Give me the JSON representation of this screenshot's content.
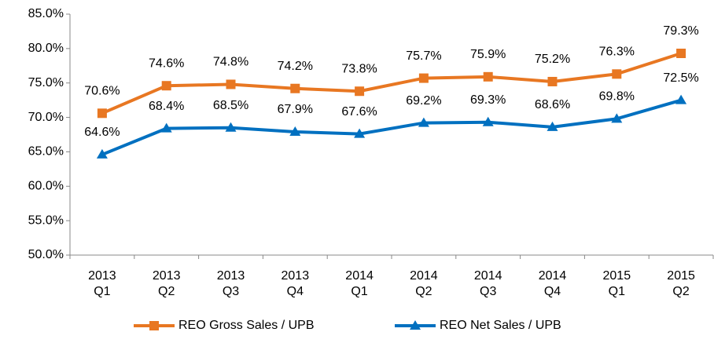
{
  "chart_data": {
    "type": "line",
    "categories": [
      "2013 Q1",
      "2013 Q2",
      "2013 Q3",
      "2013 Q4",
      "2014 Q1",
      "2014 Q2",
      "2014 Q3",
      "2014 Q4",
      "2015 Q1",
      "2015 Q2"
    ],
    "series": [
      {
        "name": "REO Gross Sales / UPB",
        "color": "#E87722",
        "marker": "square",
        "values": [
          70.6,
          74.6,
          74.8,
          74.2,
          73.8,
          75.7,
          75.9,
          75.2,
          76.3,
          79.3
        ],
        "value_labels": [
          "70.6%",
          "74.6%",
          "74.8%",
          "74.2%",
          "73.8%",
          "75.7%",
          "75.9%",
          "75.2%",
          "76.3%",
          "79.3%"
        ]
      },
      {
        "name": "REO Net Sales / UPB",
        "color": "#0070C0",
        "marker": "triangle",
        "values": [
          64.6,
          68.4,
          68.5,
          67.9,
          67.6,
          69.2,
          69.3,
          68.6,
          69.8,
          72.5
        ],
        "value_labels": [
          "64.6%",
          "68.4%",
          "68.5%",
          "67.9%",
          "67.6%",
          "69.2%",
          "69.3%",
          "68.6%",
          "69.8%",
          "72.5%"
        ]
      }
    ],
    "ylim": [
      50,
      85
    ],
    "yticks": [
      {
        "value": 50,
        "label": "50.0%"
      },
      {
        "value": 55,
        "label": "55.0%"
      },
      {
        "value": 60,
        "label": "60.0%"
      },
      {
        "value": 65,
        "label": "65.0%"
      },
      {
        "value": 70,
        "label": "70.0%"
      },
      {
        "value": 75,
        "label": "75.0%"
      },
      {
        "value": 80,
        "label": "80.0%"
      },
      {
        "value": 85,
        "label": "85.0%"
      }
    ],
    "grid": false,
    "legend": "bottom"
  }
}
